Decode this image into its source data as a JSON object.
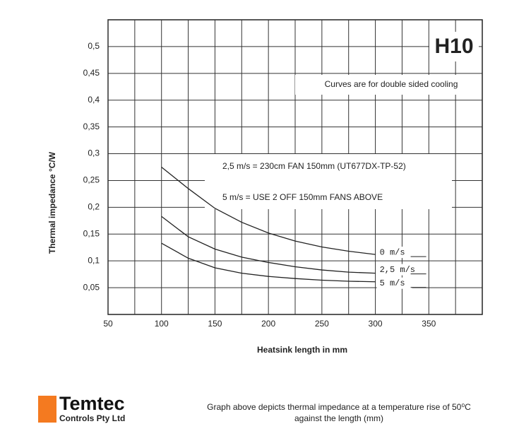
{
  "chart_data": {
    "type": "line",
    "badge": "H10",
    "note": "Curves are for double sided cooling",
    "annotations": [
      "2,5 m/s  =  230cm FAN 150mm (UT677DX-TP-52)",
      "5 m/s = USE 2 OFF 150mm FANS ABOVE"
    ],
    "xlabel": "Heatsink length in mm",
    "ylabel": "Thermal impedance °C/W",
    "x": [
      100,
      125,
      150,
      175,
      200,
      225,
      250,
      275,
      300
    ],
    "series": [
      {
        "name": "0 m/s",
        "color": "#222222",
        "values": [
          0.275,
          0.235,
          0.198,
          0.172,
          0.152,
          0.137,
          0.126,
          0.118,
          0.112
        ]
      },
      {
        "name": "2,5 m/s",
        "color": "#222222",
        "values": [
          0.183,
          0.145,
          0.122,
          0.107,
          0.097,
          0.089,
          0.083,
          0.079,
          0.077
        ]
      },
      {
        "name": "5 m/s",
        "color": "#222222",
        "values": [
          0.133,
          0.105,
          0.087,
          0.077,
          0.071,
          0.067,
          0.064,
          0.062,
          0.061
        ]
      }
    ],
    "xlim": [
      50,
      400
    ],
    "xticks": [
      50,
      100,
      150,
      200,
      250,
      300,
      350
    ],
    "xgrid": [
      75,
      125,
      175,
      225,
      275,
      325,
      375
    ],
    "ylim": [
      0,
      0.55
    ],
    "yticks": [
      {
        "value": 0.05,
        "label": "0,05"
      },
      {
        "value": 0.1,
        "label": "0,1"
      },
      {
        "value": 0.15,
        "label": "0,15"
      },
      {
        "value": 0.2,
        "label": "0,2"
      },
      {
        "value": 0.25,
        "label": "0,25"
      },
      {
        "value": 0.3,
        "label": "0,3"
      },
      {
        "value": 0.35,
        "label": "0,35"
      },
      {
        "value": 0.4,
        "label": "0,4"
      },
      {
        "value": 0.45,
        "label": "0,45"
      },
      {
        "value": 0.5,
        "label": "0,5"
      }
    ],
    "grid": true
  },
  "footer": {
    "logo": "Temtec",
    "company": "Controls Pty Ltd",
    "caption": [
      "Graph above depicts thermal impedance at a temperature rise of 50⁰C",
      "against the length (mm)"
    ]
  }
}
